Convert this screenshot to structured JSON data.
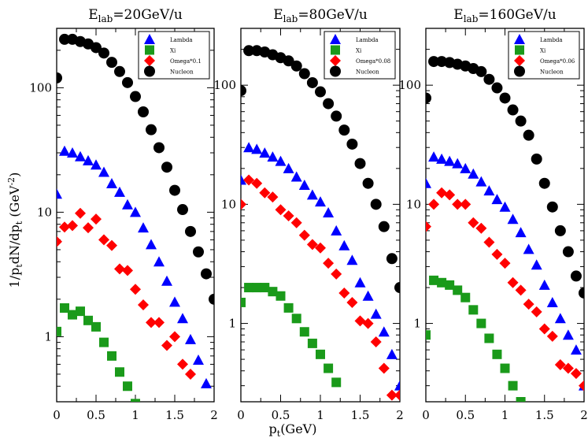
{
  "figure": {
    "xlabel": "p",
    "xlabel_sub": "t",
    "xlabel_unit": "(GeV)",
    "ylabel": "1/p",
    "ylabel_sub1": "t",
    "ylabel_mid": "dN/dp",
    "ylabel_sub2": "t",
    "ylabel_unit": "(GeV",
    "ylabel_sup": "-2",
    "ylabel_close": ")"
  },
  "colors": {
    "lambda": "#0000ff",
    "xi": "#1a9a1a",
    "omega": "#ff0000",
    "nucleon": "#000000"
  },
  "chart_data": [
    {
      "type": "scatter",
      "title": "E",
      "title_sub": "lab",
      "title_rest": "=20GeV/u",
      "x_ticks": [
        "0",
        "0.5",
        "1",
        "1.5",
        "2"
      ],
      "y_ticks": [
        "1",
        "10",
        "100"
      ],
      "xlim": [
        0,
        2
      ],
      "ylim": [
        0.3,
        300
      ],
      "yscale": "log",
      "legend_position": "top-right",
      "series": [
        {
          "name": "Lambda",
          "marker": "triangle",
          "color": "#0000ff",
          "x": [
            0.0,
            0.1,
            0.2,
            0.3,
            0.4,
            0.5,
            0.6,
            0.7,
            0.8,
            0.9,
            1.0,
            1.1,
            1.2,
            1.3,
            1.4,
            1.5,
            1.6,
            1.7,
            1.8,
            1.9
          ],
          "y": [
            14,
            31,
            30,
            28,
            26,
            24,
            21,
            17,
            14.5,
            11.5,
            10,
            7.5,
            5.5,
            4,
            2.8,
            1.9,
            1.4,
            0.95,
            0.65,
            0.42
          ]
        },
        {
          "name": "Xi",
          "marker": "square",
          "color": "#1a9a1a",
          "x": [
            0.0,
            0.1,
            0.2,
            0.3,
            0.4,
            0.5,
            0.6,
            0.7,
            0.8,
            0.9,
            1.0
          ],
          "y": [
            1.1,
            1.7,
            1.5,
            1.6,
            1.35,
            1.2,
            0.9,
            0.7,
            0.52,
            0.4,
            0.29
          ]
        },
        {
          "name": "Omega*0.1",
          "marker": "diamond",
          "color": "#ff0000",
          "x": [
            0.0,
            0.1,
            0.2,
            0.3,
            0.4,
            0.5,
            0.6,
            0.7,
            0.8,
            0.9,
            1.0,
            1.1,
            1.2,
            1.3,
            1.4,
            1.5,
            1.6,
            1.7
          ],
          "y": [
            5.8,
            7.6,
            7.8,
            9.8,
            7.5,
            8.8,
            6,
            5.4,
            3.5,
            3.4,
            2.4,
            1.8,
            1.3,
            1.3,
            0.85,
            1.0,
            0.6,
            0.5
          ]
        },
        {
          "name": "Nucleon",
          "marker": "circle",
          "color": "#000000",
          "x": [
            0.0,
            0.1,
            0.2,
            0.3,
            0.4,
            0.5,
            0.6,
            0.7,
            0.8,
            0.9,
            1.0,
            1.1,
            1.2,
            1.3,
            1.4,
            1.5,
            1.6,
            1.7,
            1.8,
            1.9,
            2.0
          ],
          "y": [
            120,
            245,
            245,
            235,
            225,
            210,
            190,
            160,
            135,
            110,
            85,
            64,
            46,
            33,
            23,
            15,
            10.5,
            7,
            4.8,
            3.2,
            2.0
          ]
        }
      ]
    },
    {
      "type": "scatter",
      "title": "E",
      "title_sub": "lab",
      "title_rest": "=80GeV/u",
      "x_ticks": [
        "0",
        "0.5",
        "1",
        "1.5",
        "2"
      ],
      "y_ticks": [
        "1",
        "10",
        "100"
      ],
      "xlim": [
        0,
        2
      ],
      "ylim": [
        0.22,
        300
      ],
      "yscale": "log",
      "legend_position": "top-right",
      "series": [
        {
          "name": "Lambda",
          "marker": "triangle",
          "color": "#0000ff",
          "x": [
            0.0,
            0.1,
            0.2,
            0.3,
            0.4,
            0.5,
            0.6,
            0.7,
            0.8,
            0.9,
            1.0,
            1.1,
            1.2,
            1.3,
            1.4,
            1.5,
            1.6,
            1.7,
            1.8,
            1.9,
            2.0
          ],
          "y": [
            16,
            30,
            29,
            27,
            25,
            23,
            20,
            17,
            14.5,
            12,
            10.5,
            8.5,
            6,
            4.5,
            3.4,
            2.2,
            1.7,
            1.2,
            0.85,
            0.55,
            0.3
          ]
        },
        {
          "name": "Xi",
          "marker": "square",
          "color": "#1a9a1a",
          "x": [
            0.0,
            0.1,
            0.2,
            0.3,
            0.4,
            0.5,
            0.6,
            0.7,
            0.8,
            0.9,
            1.0,
            1.1,
            1.2
          ],
          "y": [
            1.5,
            2.0,
            2.0,
            2.0,
            1.85,
            1.7,
            1.35,
            1.1,
            0.85,
            0.68,
            0.55,
            0.42,
            0.32
          ]
        },
        {
          "name": "Omega*0.08",
          "marker": "diamond",
          "color": "#ff0000",
          "x": [
            0.0,
            0.1,
            0.2,
            0.3,
            0.4,
            0.5,
            0.6,
            0.7,
            0.8,
            0.9,
            1.0,
            1.1,
            1.2,
            1.3,
            1.4,
            1.5,
            1.6,
            1.7,
            1.8,
            1.9,
            2.0
          ],
          "y": [
            10,
            16,
            15,
            12.5,
            11.5,
            9,
            8,
            7,
            5.5,
            4.6,
            4.3,
            3.2,
            2.6,
            1.8,
            1.5,
            1.05,
            1.0,
            0.7,
            0.42,
            0.25,
            0.25
          ]
        },
        {
          "name": "Nucleon",
          "marker": "circle",
          "color": "#000000",
          "x": [
            0.0,
            0.1,
            0.2,
            0.3,
            0.4,
            0.5,
            0.6,
            0.7,
            0.8,
            0.9,
            1.0,
            1.1,
            1.2,
            1.3,
            1.4,
            1.5,
            1.6,
            1.7,
            1.8,
            1.9,
            2.0
          ],
          "y": [
            90,
            195,
            195,
            190,
            180,
            170,
            160,
            145,
            125,
            105,
            88,
            70,
            55,
            42,
            32,
            22,
            15,
            10,
            6.5,
            3.5,
            2.0
          ]
        }
      ]
    },
    {
      "type": "scatter",
      "title": "E",
      "title_sub": "lab",
      "title_rest": "=160GeV/u",
      "x_ticks": [
        "0",
        "0.5",
        "1",
        "1.5",
        "2"
      ],
      "y_ticks": [
        "1",
        "10",
        "100"
      ],
      "xlim": [
        0,
        2
      ],
      "ylim": [
        0.22,
        300
      ],
      "yscale": "log",
      "legend_position": "top-right",
      "series": [
        {
          "name": "Lambda",
          "marker": "triangle",
          "color": "#0000ff",
          "x": [
            0.0,
            0.1,
            0.2,
            0.3,
            0.4,
            0.5,
            0.6,
            0.7,
            0.8,
            0.9,
            1.0,
            1.1,
            1.2,
            1.3,
            1.4,
            1.5,
            1.6,
            1.7,
            1.8,
            1.9,
            2.0
          ],
          "y": [
            15,
            25,
            24,
            23,
            22,
            20,
            18,
            15.5,
            13,
            11,
            9.5,
            7.5,
            5.8,
            4.2,
            3.1,
            2.1,
            1.5,
            1.1,
            0.8,
            0.6,
            0.3
          ]
        },
        {
          "name": "Xi",
          "marker": "square",
          "color": "#1a9a1a",
          "x": [
            0.0,
            0.1,
            0.2,
            0.3,
            0.4,
            0.5,
            0.6,
            0.7,
            0.8,
            0.9,
            1.0,
            1.1,
            1.2
          ],
          "y": [
            0.8,
            2.3,
            2.2,
            2.1,
            1.9,
            1.65,
            1.3,
            1.0,
            0.75,
            0.55,
            0.42,
            0.3,
            0.22
          ]
        },
        {
          "name": "Omega*0.06",
          "marker": "diamond",
          "color": "#ff0000",
          "x": [
            0.0,
            0.1,
            0.2,
            0.3,
            0.4,
            0.5,
            0.6,
            0.7,
            0.8,
            0.9,
            1.0,
            1.1,
            1.2,
            1.3,
            1.4,
            1.5,
            1.6,
            1.7,
            1.8,
            1.9,
            2.0
          ],
          "y": [
            6.5,
            10,
            12.5,
            12,
            10,
            10,
            7,
            6.3,
            4.8,
            3.8,
            3.2,
            2.2,
            1.9,
            1.45,
            1.25,
            0.9,
            0.78,
            0.45,
            0.42,
            0.38,
            0.3
          ]
        },
        {
          "name": "Nucleon",
          "marker": "circle",
          "color": "#000000",
          "x": [
            0.0,
            0.1,
            0.2,
            0.3,
            0.4,
            0.5,
            0.6,
            0.7,
            0.8,
            0.9,
            1.0,
            1.1,
            1.2,
            1.3,
            1.4,
            1.5,
            1.6,
            1.7,
            1.8,
            1.9,
            2.0
          ],
          "y": [
            78,
            158,
            158,
            155,
            150,
            145,
            138,
            130,
            112,
            95,
            78,
            62,
            50,
            38,
            24,
            15,
            9.5,
            6,
            4,
            2.5,
            1.8
          ]
        }
      ]
    }
  ]
}
